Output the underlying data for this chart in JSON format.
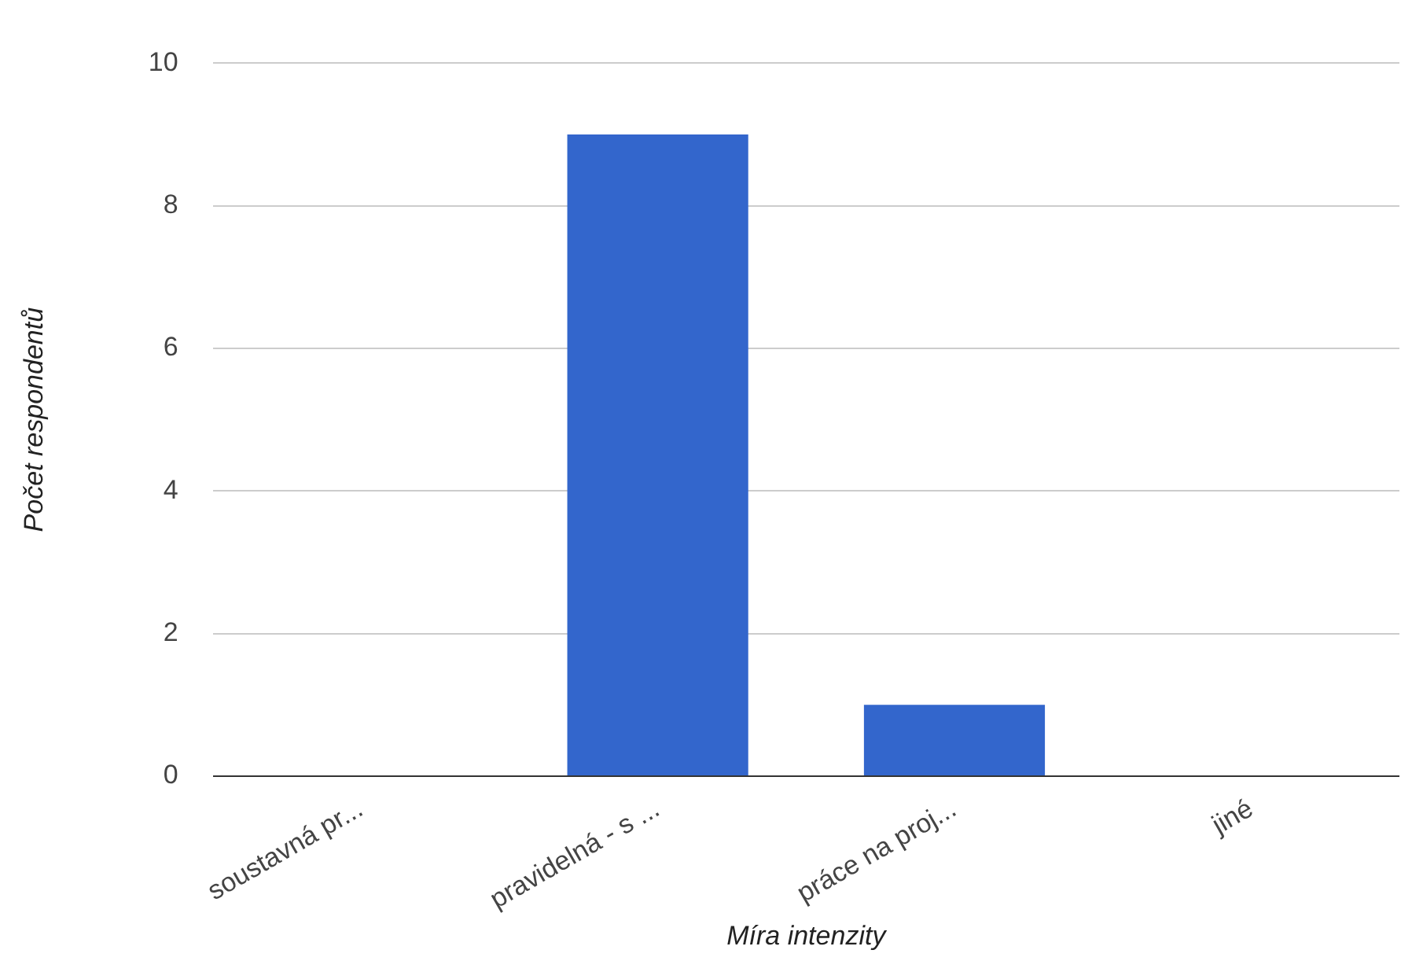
{
  "chart_data": {
    "type": "bar",
    "xlabel": "Míra intenzity",
    "ylabel": "Počet respondentů",
    "categories": [
      "soustavná pr...",
      "pravidelná - s ...",
      "práce na proj...",
      "jiné"
    ],
    "values": [
      0,
      9,
      1,
      0
    ],
    "color": "#3366cc",
    "ylim": [
      0,
      10
    ],
    "yticks": [
      0,
      2,
      4,
      6,
      8,
      10
    ],
    "grid": "y",
    "legend": false
  }
}
